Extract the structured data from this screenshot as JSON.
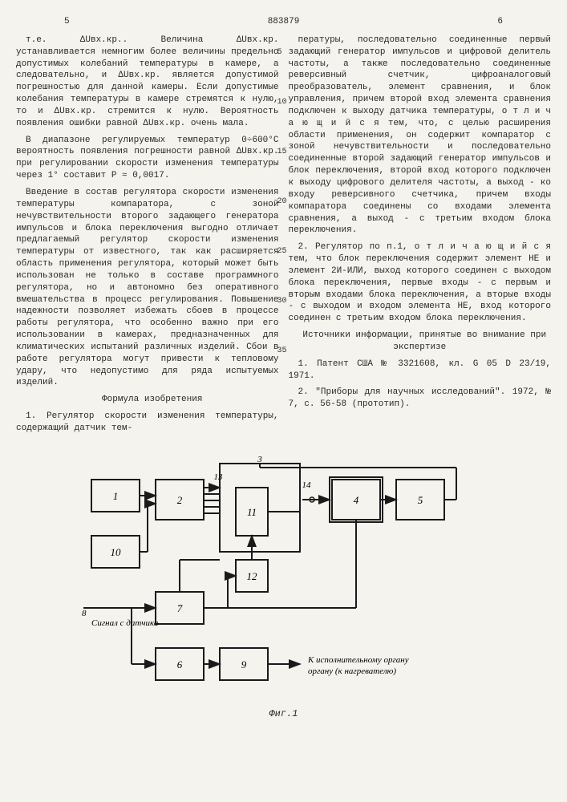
{
  "header": {
    "left_page": "5",
    "doc_number": "883879",
    "right_page": "6"
  },
  "line_marks": [
    "5",
    "10",
    "15",
    "20",
    "25",
    "30",
    "35"
  ],
  "left_column": [
    "т.е. ΔUвх.кр.. Величина ΔUвх.кр. устанавливается немногим более величины предельно допустимых колебаний температуры в камере, а следовательно, и ΔUвх.кр. является допустимой погрешностью для данной камеры. Если допустимые колебания температуры в камере стремятся к нулю, то и ΔUвх.кр. стремится к нулю. Вероятность появления ошибки равной ΔUвх.кр. очень мала.",
    "В диапазоне регулируемых температур 0÷600°С вероятность появления погрешности равной ΔUвх.кр. при регулировании скорости изменения температуры через 1° составит P ≈ 0,0017.",
    "Введение в состав регулятора скорости изменения температуры компаратора, с зоной нечувствительности второго задающего генератора импульсов и блока переключения выгодно отличает предлагаемый регулятор скорости изменения температуры от известного, так как расширяется область применения регулятора, который может быть использован не только в составе программного регулятора, но и автономно без оперативного вмешательства в процесс регулирования. Повышение надежности позволяет избежать сбоев в процессе работы регулятора, что особенно важно при его использовании в камерах, предназначенных для климатических испытаний различных изделий. Сбои в работе регулятора могут привести к тепловому удару, что недопустимо для ряда испытуемых изделий."
  ],
  "formula_heading": "Формула изобретения",
  "formula_start": "1. Регулятор скорости изменения температуры, содержащий датчик тем-",
  "right_column": [
    "пературы, последовательно соединенные первый задающий генератор импульсов и цифровой делитель частоты, а также последовательно соединенные реверсивный счетчик, цифроаналоговый преобразователь, элемент сравнения, и блок управления, причем второй вход элемента сравнения подключен к выходу датчика температуры, о т л и ч а ю щ и й с я  тем, что, с целью расширения области применения, он содержит компаратор с зоной нечувствительности и последовательно соединенные второй задающий генератор импульсов и блок переключения, второй вход которого подключен к выходу цифрового делителя частоты, а выход - ко входу реверсивного счетчика, причем входы компаратора соединены со входами элемента сравнения, а выход - с третьим входом блока переключения.",
    "2. Регулятор по п.1, о т л и ч а ю щ и й с я  тем, что блок переключения содержит элемент НЕ и элемент 2И-ИЛИ, выход которого соединен с выходом блока переключения, первые входы - с первым и вторым входами блока переключения, а вторые входы - с выходом и входом элемента НЕ, вход которого соединен с третьим входом блока переключения."
  ],
  "sources_heading": "Источники информации, принятые во внимание при экспертизе",
  "sources": [
    "1. Патент США № 3321608, кл. G 05 D 23/19, 1971.",
    "2. \"Приборы для научных исследований\". 1972, № 7, с. 56-58 (прототип)."
  ],
  "figure": {
    "label": "Фиг.1",
    "signal_label": "Сигнал с датчика",
    "output_label": "К исполнительному органу (к нагревателю)",
    "blocks": {
      "1": [
        20,
        30,
        60,
        40
      ],
      "2": [
        100,
        30,
        60,
        50
      ],
      "3": [
        180,
        10,
        100,
        20
      ],
      "10": [
        20,
        100,
        60,
        40
      ],
      "7": [
        100,
        170,
        60,
        40
      ],
      "6": [
        100,
        240,
        60,
        40
      ],
      "9": [
        180,
        240,
        60,
        40
      ],
      "11": [
        200,
        40,
        40,
        60
      ],
      "12": [
        200,
        130,
        40,
        40
      ],
      "4": [
        320,
        30,
        60,
        50
      ],
      "5": [
        400,
        30,
        60,
        50
      ],
      "13": [
        178,
        30
      ],
      "14": [
        288,
        40
      ]
    },
    "stroke": "#1a1a1a",
    "stroke_width": 2,
    "bg": "#f5f3ee",
    "font_size": 13
  }
}
